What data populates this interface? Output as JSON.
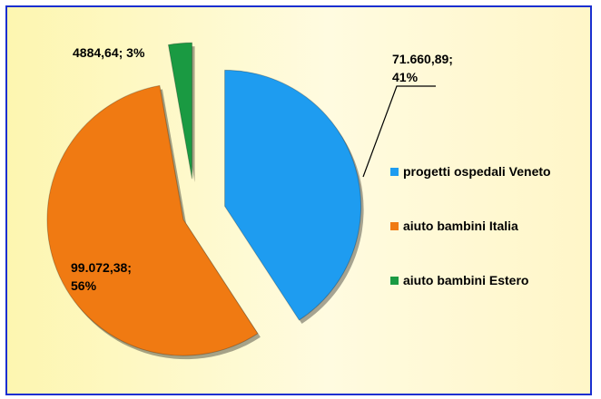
{
  "chart_data": {
    "type": "pie",
    "categories": [
      "progetti ospedali Veneto",
      "aiuto bambini Italia",
      "aiuto bambini Estero"
    ],
    "values": [
      71660.89,
      99072.38,
      4884.64
    ],
    "value_labels": [
      "71.660,89; 41%",
      "99.072,38; 56%",
      "4884,64; 3%"
    ],
    "colors": [
      "#1e9cf0",
      "#f07a12",
      "#1a9a42"
    ]
  }
}
